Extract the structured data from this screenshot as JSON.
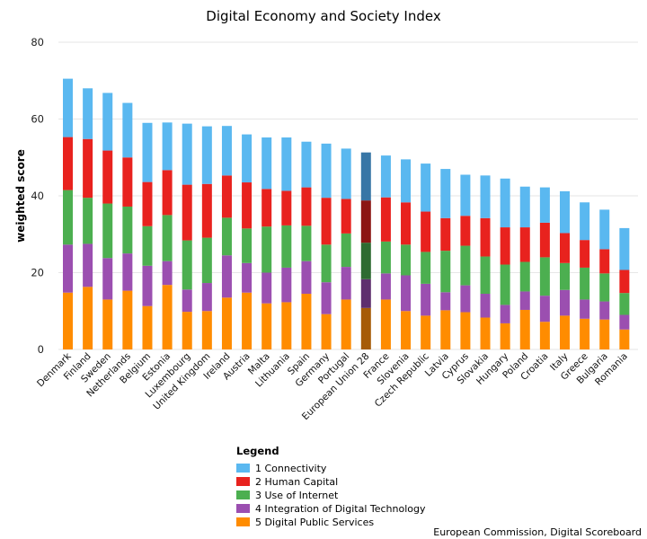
{
  "chart_data": {
    "type": "bar",
    "stacked": true,
    "title": "Digital Economy and Society Index",
    "xlabel": "",
    "ylabel": "weighted score",
    "ylim": [
      0,
      80
    ],
    "yticks": [
      0,
      20,
      40,
      60,
      80
    ],
    "grid": true,
    "legend_title": "Legend",
    "legend_position": "bottom-center",
    "source": "European Commission, Digital Scoreboard",
    "highlight_category": "European Union 28",
    "categories": [
      "Denmark",
      "Finland",
      "Sweden",
      "Netherlands",
      "Belgium",
      "Estonia",
      "Luxembourg",
      "United Kingdom",
      "Ireland",
      "Austria",
      "Malta",
      "Lithuania",
      "Spain",
      "Germany",
      "Portugal",
      "European Union 28",
      "France",
      "Slovenia",
      "Czech Republic",
      "Latvia",
      "Cyprus",
      "Slovakia",
      "Hungary",
      "Poland",
      "Croatia",
      "Italy",
      "Greece",
      "Bulgaria",
      "Romania"
    ],
    "series": [
      {
        "name": "5 Digital Public Services",
        "color": "#ff8c00",
        "highlight_color": "#a65b08",
        "values": [
          14.8,
          16.3,
          13.0,
          15.3,
          11.3,
          16.8,
          9.8,
          10.0,
          13.5,
          14.8,
          12.0,
          12.3,
          14.5,
          9.2,
          13.0,
          10.8,
          13.0,
          10.0,
          8.8,
          10.2,
          9.7,
          8.3,
          6.8,
          10.3,
          7.2,
          8.8,
          8.0,
          7.8,
          5.2
        ]
      },
      {
        "name": "4 Integration of Digital Technology",
        "color": "#9b4fb0",
        "highlight_color": "#5e2f6e",
        "values": [
          12.5,
          11.2,
          10.8,
          9.7,
          10.5,
          6.2,
          5.8,
          7.3,
          11.0,
          7.7,
          8.0,
          9.0,
          8.5,
          8.3,
          8.5,
          7.5,
          6.8,
          9.3,
          8.3,
          4.7,
          7.0,
          6.2,
          4.8,
          4.8,
          6.8,
          6.7,
          5.0,
          4.7,
          3.8
        ]
      },
      {
        "name": "3 Use of Internet",
        "color": "#4caf50",
        "highlight_color": "#2e6b31",
        "values": [
          14.2,
          12.0,
          14.2,
          12.2,
          10.3,
          12.0,
          12.8,
          11.8,
          9.8,
          9.0,
          12.0,
          11.0,
          9.2,
          9.8,
          8.7,
          9.5,
          8.3,
          8.0,
          8.3,
          10.8,
          10.3,
          9.7,
          10.5,
          7.7,
          10.0,
          7.0,
          8.3,
          7.3,
          5.7
        ]
      },
      {
        "name": "2 Human Capital",
        "color": "#e8221e",
        "highlight_color": "#8c1513",
        "values": [
          13.8,
          15.3,
          13.8,
          12.8,
          11.5,
          11.7,
          14.5,
          14.0,
          11.0,
          12.0,
          9.8,
          9.0,
          10.0,
          12.2,
          9.0,
          11.0,
          11.5,
          11.0,
          10.5,
          8.5,
          7.8,
          10.0,
          9.7,
          9.0,
          9.0,
          7.8,
          7.2,
          6.3,
          6.0
        ]
      },
      {
        "name": "1 Connectivity",
        "color": "#5ab8f0",
        "highlight_color": "#3876a6",
        "values": [
          15.2,
          13.2,
          15.0,
          14.2,
          15.4,
          12.4,
          15.9,
          15.0,
          12.9,
          12.5,
          13.4,
          13.9,
          11.9,
          14.1,
          13.1,
          12.5,
          10.9,
          11.2,
          12.5,
          12.8,
          10.7,
          11.1,
          12.7,
          10.6,
          9.2,
          10.9,
          9.8,
          10.3,
          10.9
        ]
      }
    ]
  }
}
